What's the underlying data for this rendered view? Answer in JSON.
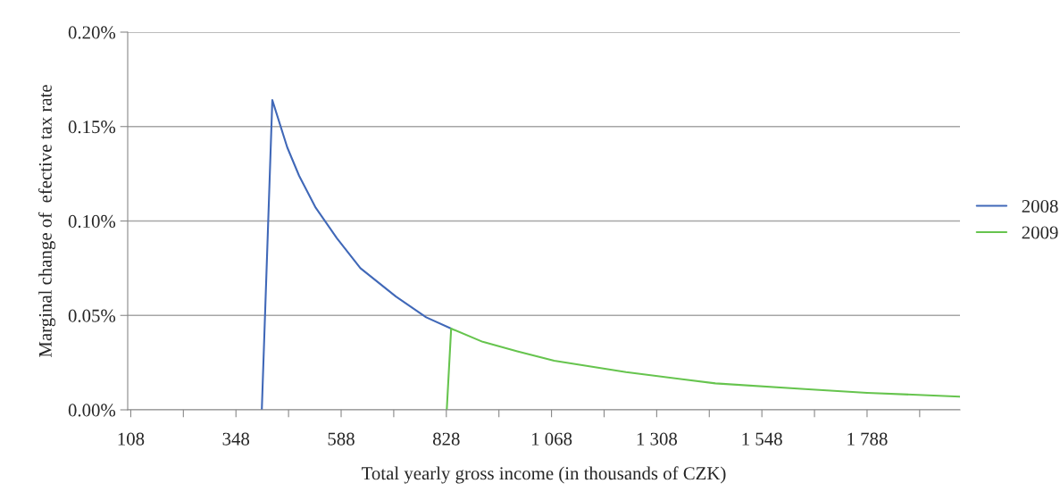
{
  "chart_data": {
    "type": "line",
    "xlabel": "Total yearly gross income (in thousands of CZK)",
    "ylabel": "Marginal change of  efective tax rate",
    "series": [
      {
        "name": "2008",
        "color": "#4068b8",
        "x": [
          407,
          431,
          465,
          492,
          530,
          578,
          632,
          713,
          782,
          839
        ],
        "values": [
          0,
          0.164,
          0.139,
          0.124,
          0.107,
          0.091,
          0.075,
          0.06,
          0.049,
          0.043
        ]
      },
      {
        "name": "2009",
        "color": "#66c44e",
        "x": [
          829,
          839,
          911,
          990,
          1074,
          1238,
          1442,
          1646,
          1788,
          2000
        ],
        "values": [
          0,
          0.043,
          0.036,
          0.031,
          0.026,
          0.02,
          0.014,
          0.011,
          0.009,
          0.007
        ]
      }
    ],
    "xlim": [
      101,
      2000
    ],
    "xticks": [
      108,
      {
        "value": 228,
        "label": null
      },
      348,
      {
        "value": 468,
        "label": null
      },
      588,
      {
        "value": 708,
        "label": null
      },
      828,
      {
        "value": 948,
        "label": null
      },
      {
        "value": 1068,
        "label": "1 068"
      },
      {
        "value": 1188,
        "label": null
      },
      {
        "value": 1308,
        "label": "1 308"
      },
      {
        "value": 1428,
        "label": null
      },
      {
        "value": 1548,
        "label": "1 548"
      },
      {
        "value": 1668,
        "label": null
      },
      {
        "value": 1788,
        "label": "1 788"
      },
      {
        "value": 1908,
        "label": null
      }
    ],
    "ylim": [
      0,
      0.2
    ],
    "yticks": [
      {
        "value": 0,
        "label": "0.00%"
      },
      {
        "value": 0.05,
        "label": "0.05%"
      },
      {
        "value": 0.1,
        "label": "0.10%"
      },
      {
        "value": 0.15,
        "label": "0.15%"
      },
      {
        "value": 0.2,
        "label": "0.20%"
      }
    ],
    "grid": "y",
    "legend": "right",
    "marker": "none",
    "line_style": "solid"
  }
}
